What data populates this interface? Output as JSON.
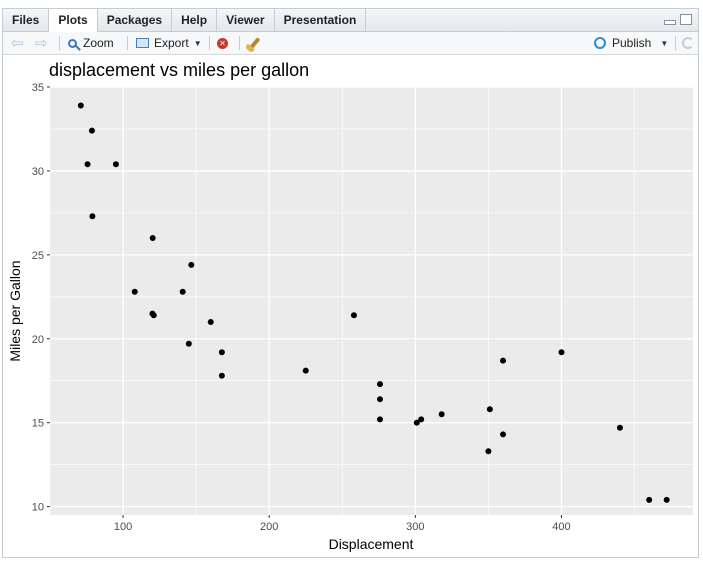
{
  "pane": {
    "tabs": [
      {
        "label": "Files",
        "active": false
      },
      {
        "label": "Plots",
        "active": true
      },
      {
        "label": "Packages",
        "active": false
      },
      {
        "label": "Help",
        "active": false
      },
      {
        "label": "Viewer",
        "active": false
      },
      {
        "label": "Presentation",
        "active": false
      }
    ]
  },
  "toolbar": {
    "zoom_label": "Zoom",
    "export_label": "Export",
    "publish_label": "Publish"
  },
  "icons": {
    "back": "arrow-left-icon",
    "forward": "arrow-right-icon",
    "zoom": "magnifier-icon",
    "export": "export-icon",
    "remove": "remove-plot-icon",
    "clear": "broom-icon",
    "publish": "publish-icon",
    "refresh": "refresh-icon"
  },
  "chart_data": {
    "type": "scatter",
    "title": "displacement vs miles per gallon",
    "xlabel": "Displacement",
    "ylabel": "Miles per Gallon",
    "xlim": [
      50,
      490
    ],
    "ylim": [
      9.5,
      35
    ],
    "xticks": [
      100,
      200,
      300,
      400
    ],
    "yticks": [
      10,
      15,
      20,
      25,
      30,
      35
    ],
    "grid": true,
    "panel_color": "#ebebeb",
    "point_color": "#000000",
    "points": [
      {
        "x": 71.1,
        "y": 33.9
      },
      {
        "x": 75.7,
        "y": 30.4
      },
      {
        "x": 78.7,
        "y": 32.4
      },
      {
        "x": 79.0,
        "y": 27.3
      },
      {
        "x": 95.1,
        "y": 30.4
      },
      {
        "x": 108.0,
        "y": 22.8
      },
      {
        "x": 120.1,
        "y": 21.5
      },
      {
        "x": 120.3,
        "y": 26.0
      },
      {
        "x": 121.0,
        "y": 21.4
      },
      {
        "x": 140.8,
        "y": 22.8
      },
      {
        "x": 145.0,
        "y": 19.7
      },
      {
        "x": 146.7,
        "y": 24.4
      },
      {
        "x": 160.0,
        "y": 21.0
      },
      {
        "x": 167.6,
        "y": 19.2
      },
      {
        "x": 167.6,
        "y": 17.8
      },
      {
        "x": 225.0,
        "y": 18.1
      },
      {
        "x": 258.0,
        "y": 21.4
      },
      {
        "x": 275.8,
        "y": 16.4
      },
      {
        "x": 275.8,
        "y": 17.3
      },
      {
        "x": 275.8,
        "y": 15.2
      },
      {
        "x": 301.0,
        "y": 15.0
      },
      {
        "x": 304.0,
        "y": 15.2
      },
      {
        "x": 318.0,
        "y": 15.5
      },
      {
        "x": 350.0,
        "y": 13.3
      },
      {
        "x": 351.0,
        "y": 15.8
      },
      {
        "x": 360.0,
        "y": 18.7
      },
      {
        "x": 360.0,
        "y": 14.3
      },
      {
        "x": 400.0,
        "y": 19.2
      },
      {
        "x": 440.0,
        "y": 14.7
      },
      {
        "x": 460.0,
        "y": 10.4
      },
      {
        "x": 472.0,
        "y": 10.4
      }
    ]
  }
}
